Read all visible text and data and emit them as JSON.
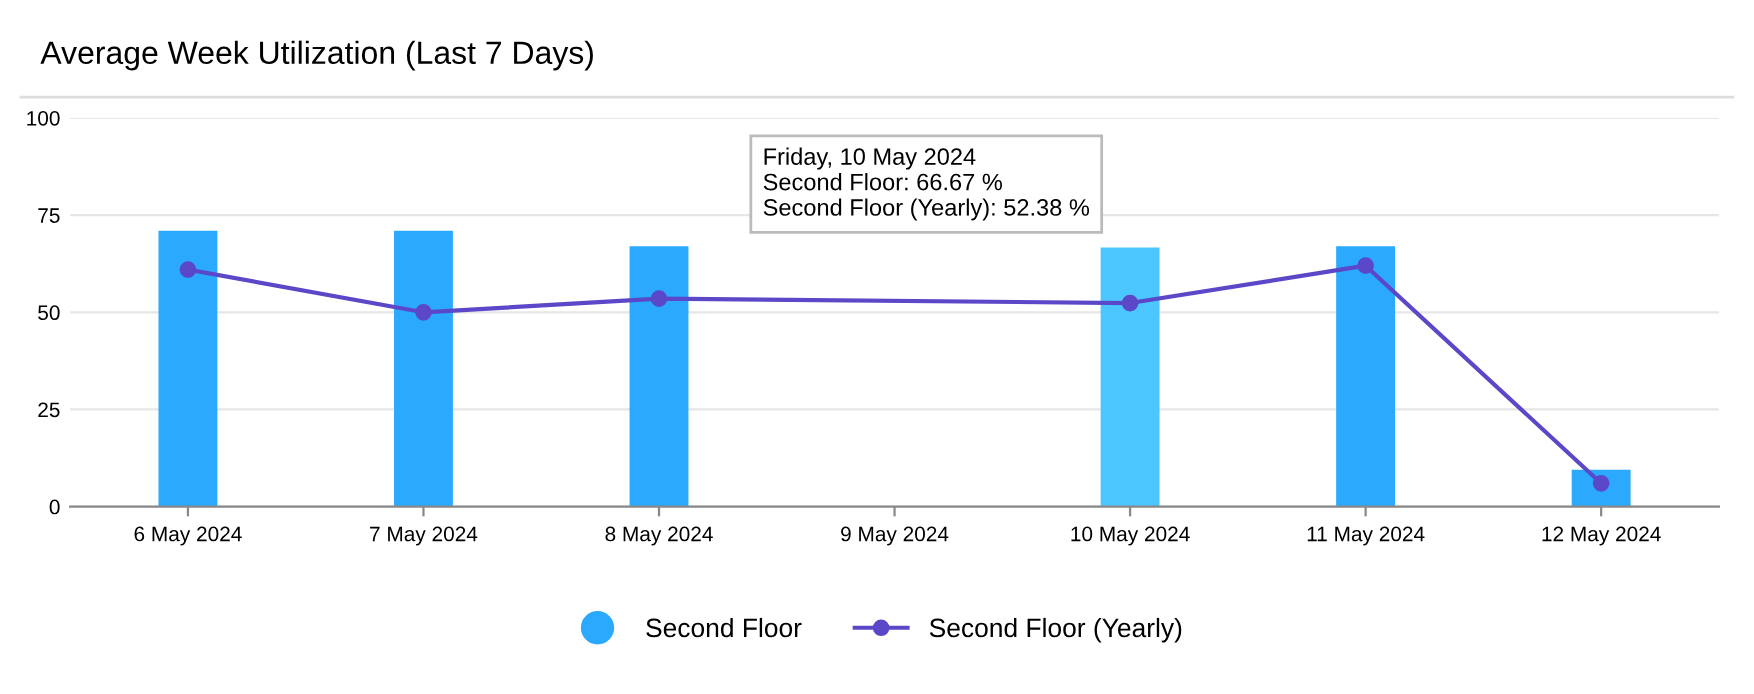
{
  "chart_data": {
    "type": "bar",
    "title": "Average Week Utilization (Last 7 Days)",
    "categories": [
      "6 May 2024",
      "7 May 2024",
      "8 May 2024",
      "9 May 2024",
      "10 May 2024",
      "11 May 2024",
      "12 May 2024"
    ],
    "series": [
      {
        "name": "Second Floor",
        "color": "#2aa9fd",
        "colors": [
          "#2aa9fd",
          "#2aa9fd",
          "#2aa9fd",
          "#2aa9fd",
          "#4cc6ff",
          "#2aa9fd",
          "#2aa9fd"
        ],
        "values": [
          71,
          71,
          67,
          null,
          66.67,
          67,
          9.5
        ]
      },
      {
        "name": "Second Floor (Yearly)",
        "type": "line",
        "color": "#5a48c8",
        "marker": "circle",
        "values": [
          61.0,
          50.0,
          53.5,
          null,
          52.38,
          62.0,
          6.0
        ]
      }
    ],
    "ylim": [
      0,
      100
    ],
    "yticks": [
      0,
      25,
      50,
      75,
      100
    ],
    "grid": "y",
    "legend": "bottom",
    "annotations": [
      "Friday, 10 May 2024",
      "Second Floor: 66.67 %",
      "Second Floor (Yearly): 52.38 %"
    ]
  }
}
